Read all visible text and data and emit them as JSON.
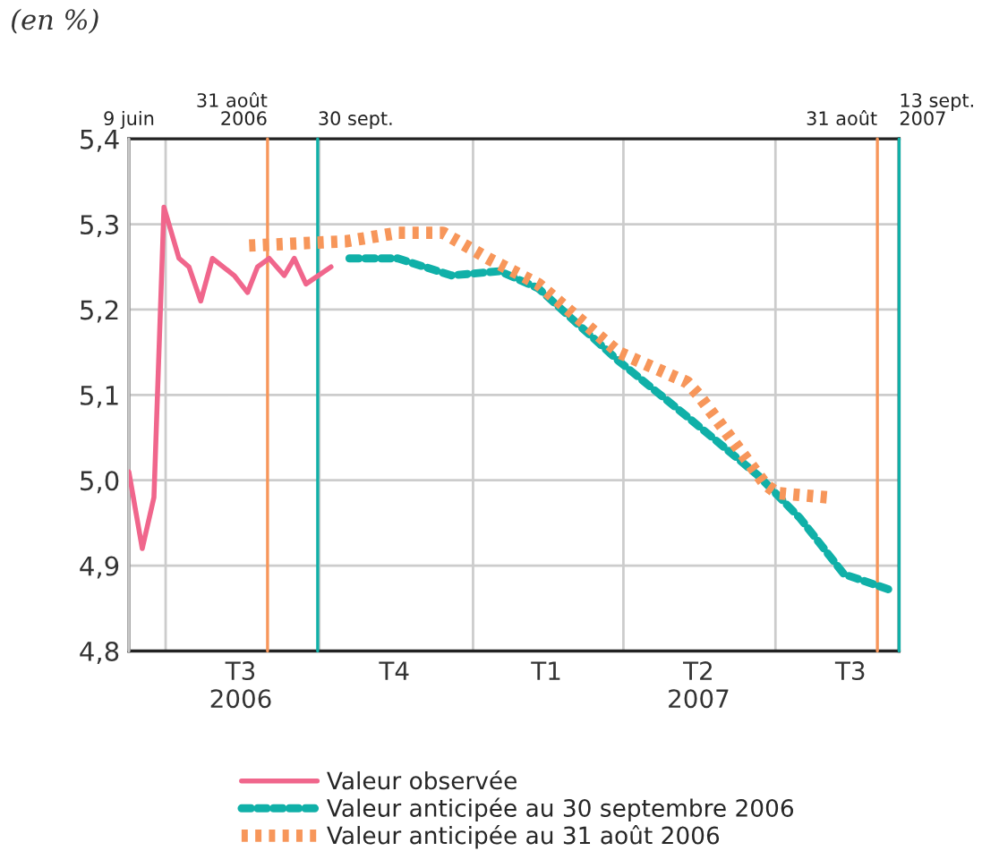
{
  "chart_data": {
    "type": "line",
    "subtitle": "(en %)",
    "xlim": [
      "2006-06-09",
      "2007-09-13"
    ],
    "xticks": [
      {
        "value": "2006-07-01",
        "label": null
      },
      {
        "value": "2006-08-15",
        "label": "T3\n2006"
      },
      {
        "value": "2006-10-01",
        "label": null
      },
      {
        "value": "2006-11-15",
        "label": "T4"
      },
      {
        "value": "2007-01-01",
        "label": null
      },
      {
        "value": "2007-02-14",
        "label": "T1"
      },
      {
        "value": "2007-04-01",
        "label": null
      },
      {
        "value": "2007-05-16",
        "label": "T2\n2007"
      },
      {
        "value": "2007-07-01",
        "label": null
      },
      {
        "value": "2007-08-15",
        "label": "T3"
      }
    ],
    "ylim": [
      4.8,
      5.4
    ],
    "yticks": [
      {
        "value": 4.8,
        "label": "4,8"
      },
      {
        "value": 4.9,
        "label": "4,9"
      },
      {
        "value": 5.0,
        "label": "5,0"
      },
      {
        "value": 5.1,
        "label": "5,1"
      },
      {
        "value": 5.2,
        "label": "5,2"
      },
      {
        "value": 5.3,
        "label": "5,3"
      },
      {
        "value": 5.4,
        "label": "5,4"
      }
    ],
    "grid": true,
    "legend": "bottom",
    "marker": "none",
    "ref_lines": [
      {
        "axis": "x",
        "value": "2006-06-09",
        "label": "9 juin",
        "color": "#c8c8c8"
      },
      {
        "axis": "x",
        "value": "2006-08-31",
        "label": "31 août\n2006",
        "color": "#f7965a"
      },
      {
        "axis": "x",
        "value": "2006-09-30",
        "label": "30 sept.",
        "color": "#10b0a8"
      },
      {
        "axis": "x",
        "value": "2007-08-31",
        "label": "31 août",
        "color": "#f7965a"
      },
      {
        "axis": "x",
        "value": "2007-09-13",
        "label": "13 sept.\n2007",
        "color": "#10b0a8"
      }
    ],
    "series": [
      {
        "name": "Valeur observée",
        "color": "#f0668c",
        "line_style": "solid",
        "x": [
          "2006-06-09",
          "2006-06-17",
          "2006-06-24",
          "2006-06-30",
          "2006-07-09",
          "2006-07-15",
          "2006-07-22",
          "2006-07-29",
          "2006-08-11",
          "2006-08-19",
          "2006-08-25",
          "2006-09-01",
          "2006-09-10",
          "2006-09-16",
          "2006-09-23",
          "2006-10-08"
        ],
        "values": [
          5.01,
          4.92,
          4.98,
          5.32,
          5.26,
          5.25,
          5.21,
          5.26,
          5.24,
          5.22,
          5.25,
          5.26,
          5.24,
          5.26,
          5.23,
          5.25
        ]
      },
      {
        "name": "Valeur anticipée au 30 septembre 2006",
        "color": "#10b0a8",
        "line_style": "dashed",
        "x": [
          "2006-10-19",
          "2006-11-17",
          "2006-12-19",
          "2007-01-17",
          "2007-02-09",
          "2007-03-29",
          "2007-05-12",
          "2007-06-21",
          "2007-07-16",
          "2007-08-11",
          "2007-09-10"
        ],
        "values": [
          5.26,
          5.26,
          5.24,
          5.245,
          5.225,
          5.14,
          5.07,
          5.005,
          4.955,
          4.89,
          4.87
        ]
      },
      {
        "name": "Valeur anticipée au 31 août 2006",
        "color": "#f7965a",
        "line_style": "dotted",
        "x": [
          "2006-08-20",
          "2006-10-17",
          "2006-11-17",
          "2006-12-14",
          "2007-01-10",
          "2007-02-09",
          "2007-03-29",
          "2007-05-09",
          "2007-05-16",
          "2007-06-25",
          "2007-07-02",
          "2007-08-01"
        ],
        "values": [
          5.275,
          5.28,
          5.29,
          5.29,
          5.26,
          5.23,
          5.15,
          5.115,
          5.1,
          4.995,
          4.985,
          4.98
        ]
      }
    ]
  }
}
